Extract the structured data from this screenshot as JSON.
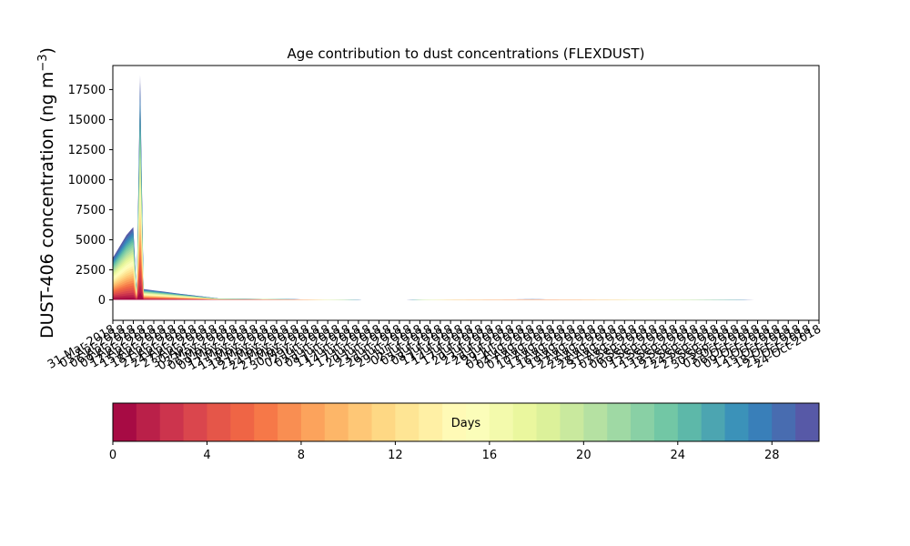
{
  "chart_data": {
    "type": "area",
    "title": "Age contribution to dust concentrations (FLEXDUST)",
    "ylabel": "DUST-406 concentration (ng m",
    "ylabel_sup": "−3",
    "ylabel_close": ")",
    "ylim": [
      -1700,
      19500
    ],
    "yticks": [
      0,
      2500,
      5000,
      7500,
      10000,
      12500,
      15000,
      17500
    ],
    "yticklabels": [
      "0",
      "2500",
      "5000",
      "7500",
      "10000",
      "12500",
      "15000",
      "17500"
    ],
    "x_start": "2018-03-31",
    "x_end": "2018-10-24",
    "xtick_interval_days": 3,
    "first_xtick_label": "31-Mar-2018",
    "last_xtick_label": "21-Oct-2018",
    "grid": false,
    "stacked_layers": 30,
    "total_series": [
      {
        "date": "2018-03-31",
        "value": 3500
      },
      {
        "date": "2018-04-04",
        "value": 5400
      },
      {
        "date": "2018-04-06",
        "value": 6050
      },
      {
        "date": "2018-04-07",
        "value": 500
      },
      {
        "date": "2018-04-08",
        "value": 18700
      },
      {
        "date": "2018-04-09",
        "value": 900
      },
      {
        "date": "2018-04-20",
        "value": 500
      },
      {
        "date": "2018-05-01",
        "value": 120
      },
      {
        "date": "2018-05-15",
        "value": 80
      },
      {
        "date": "2018-06-01",
        "value": 20
      },
      {
        "date": "2018-06-20",
        "value": 0
      },
      {
        "date": "2018-07-10",
        "value": 30
      },
      {
        "date": "2018-08-01",
        "value": 50
      },
      {
        "date": "2018-09-01",
        "value": 20
      },
      {
        "date": "2018-10-01",
        "value": 10
      },
      {
        "date": "2018-10-23",
        "value": 0
      }
    ],
    "colorbar": {
      "label": "Days",
      "min": 0,
      "max": 30,
      "ticks": [
        0,
        4,
        8,
        12,
        16,
        20,
        24,
        28
      ],
      "colormap": "Spectral",
      "colors": [
        "#9e0142",
        "#d53e4f",
        "#f46d43",
        "#fdae61",
        "#fee08b",
        "#ffffbf",
        "#e6f598",
        "#abdda4",
        "#66c2a5",
        "#3288bd",
        "#5e4fa2"
      ]
    }
  }
}
